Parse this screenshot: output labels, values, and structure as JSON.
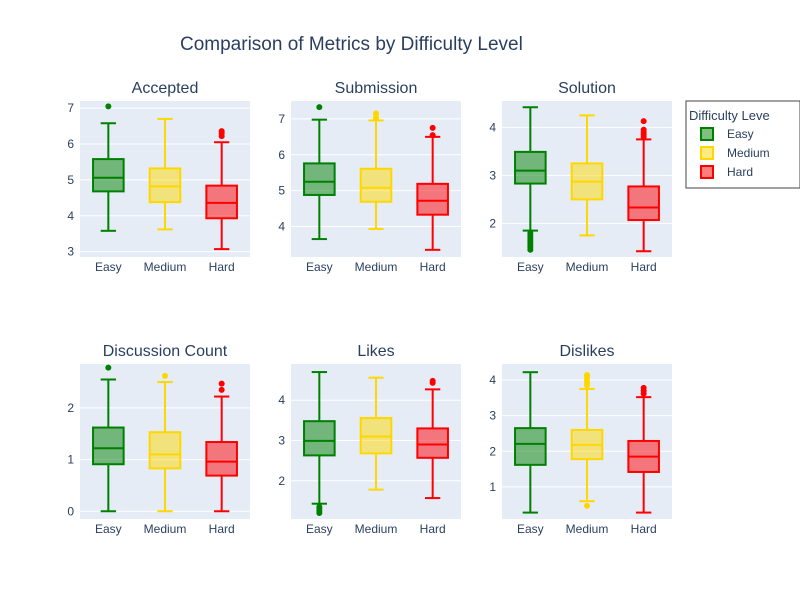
{
  "title": "Comparison of Metrics by Difficulty Level",
  "legend": {
    "title": "Difficulty Leve",
    "placement": "top-right",
    "items": [
      {
        "label": "Easy",
        "color": "#008000"
      },
      {
        "label": "Medium",
        "color": "#FFD700"
      },
      {
        "label": "Hard",
        "color": "#FF0000"
      }
    ]
  },
  "chart_data": [
    {
      "type": "box",
      "title": "Accepted",
      "categories": [
        "Easy",
        "Medium",
        "Hard"
      ],
      "ylim": [
        2.85,
        7.2
      ],
      "yticks": [
        3,
        4,
        5,
        6,
        7
      ],
      "series": [
        {
          "min": 3.58,
          "q1": 4.68,
          "median": 5.06,
          "q3": 5.58,
          "max": 6.58,
          "outliers": [
            7.05
          ]
        },
        {
          "min": 3.62,
          "q1": 4.38,
          "median": 4.82,
          "q3": 5.32,
          "max": 6.7,
          "outliers": []
        },
        {
          "min": 3.07,
          "q1": 3.93,
          "median": 4.36,
          "q3": 4.84,
          "max": 6.05,
          "outliers": [
            6.22,
            6.3,
            6.36
          ]
        }
      ]
    },
    {
      "type": "box",
      "title": "Submission",
      "categories": [
        "Easy",
        "Medium",
        "Hard"
      ],
      "ylim": [
        3.15,
        7.5
      ],
      "yticks": [
        4,
        5,
        6,
        7
      ],
      "series": [
        {
          "min": 3.65,
          "q1": 4.88,
          "median": 5.25,
          "q3": 5.76,
          "max": 6.98,
          "outliers": [
            7.33
          ]
        },
        {
          "min": 3.93,
          "q1": 4.69,
          "median": 5.08,
          "q3": 5.61,
          "max": 6.96,
          "outliers": [
            7.0,
            7.05,
            7.15
          ]
        },
        {
          "min": 3.35,
          "q1": 4.33,
          "median": 4.72,
          "q3": 5.19,
          "max": 6.5,
          "outliers": [
            6.55,
            6.75
          ]
        }
      ]
    },
    {
      "type": "box",
      "title": "Solution",
      "categories": [
        "Easy",
        "Medium",
        "Hard"
      ],
      "ylim": [
        1.3,
        4.55
      ],
      "yticks": [
        2,
        3,
        4
      ],
      "series": [
        {
          "min": 1.85,
          "q1": 2.83,
          "median": 3.1,
          "q3": 3.49,
          "max": 4.42,
          "outliers": [
            1.45,
            1.5,
            1.55,
            1.6,
            1.65,
            1.7,
            1.75,
            1.8
          ]
        },
        {
          "min": 1.75,
          "q1": 2.5,
          "median": 2.87,
          "q3": 3.25,
          "max": 4.25,
          "outliers": []
        },
        {
          "min": 1.42,
          "q1": 2.07,
          "median": 2.33,
          "q3": 2.77,
          "max": 3.75,
          "outliers": [
            3.8,
            3.85,
            3.9,
            3.95,
            4.13
          ]
        }
      ]
    },
    {
      "type": "box",
      "title": "Discussion Count",
      "categories": [
        "Easy",
        "Medium",
        "Hard"
      ],
      "ylim": [
        -0.15,
        2.85
      ],
      "yticks": [
        0,
        1,
        2
      ],
      "series": [
        {
          "min": 0.0,
          "q1": 0.91,
          "median": 1.22,
          "q3": 1.62,
          "max": 2.55,
          "outliers": [
            2.78
          ]
        },
        {
          "min": 0.0,
          "q1": 0.83,
          "median": 1.1,
          "q3": 1.53,
          "max": 2.5,
          "outliers": [
            2.62
          ]
        },
        {
          "min": 0.0,
          "q1": 0.69,
          "median": 0.96,
          "q3": 1.34,
          "max": 2.22,
          "outliers": [
            2.35,
            2.47
          ]
        }
      ]
    },
    {
      "type": "box",
      "title": "Likes",
      "categories": [
        "Easy",
        "Medium",
        "Hard"
      ],
      "ylim": [
        1.05,
        4.9
      ],
      "yticks": [
        2,
        3,
        4
      ],
      "series": [
        {
          "min": 1.43,
          "q1": 2.63,
          "median": 2.99,
          "q3": 3.48,
          "max": 4.7,
          "outliers": [
            1.2,
            1.25,
            1.3,
            1.35
          ]
        },
        {
          "min": 1.78,
          "q1": 2.68,
          "median": 3.1,
          "q3": 3.56,
          "max": 4.56,
          "outliers": []
        },
        {
          "min": 1.57,
          "q1": 2.57,
          "median": 2.9,
          "q3": 3.3,
          "max": 4.27,
          "outliers": [
            4.43,
            4.48
          ]
        }
      ]
    },
    {
      "type": "box",
      "title": "Dislikes",
      "categories": [
        "Easy",
        "Medium",
        "Hard"
      ],
      "ylim": [
        0.1,
        4.45
      ],
      "yticks": [
        1,
        2,
        3,
        4
      ],
      "series": [
        {
          "min": 0.28,
          "q1": 1.62,
          "median": 2.21,
          "q3": 2.65,
          "max": 4.22,
          "outliers": []
        },
        {
          "min": 0.6,
          "q1": 1.78,
          "median": 2.18,
          "q3": 2.6,
          "max": 3.75,
          "outliers": [
            0.47,
            3.85,
            3.92,
            4.0,
            4.08,
            4.14
          ]
        },
        {
          "min": 0.28,
          "q1": 1.42,
          "median": 1.85,
          "q3": 2.29,
          "max": 3.52,
          "outliers": [
            3.62,
            3.7,
            3.78
          ]
        }
      ]
    }
  ]
}
